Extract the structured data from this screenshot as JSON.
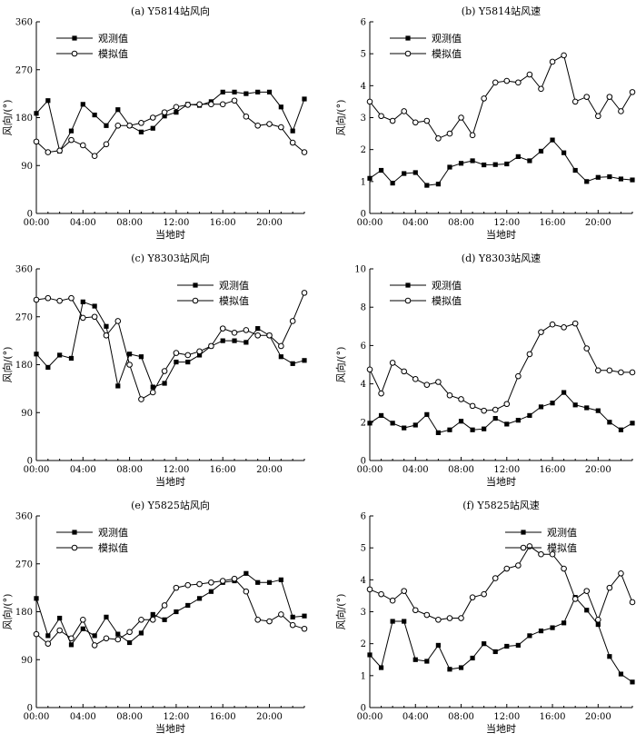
{
  "chart_data": [
    {
      "type": "line",
      "title": "(a) Y5814站风向",
      "xlabel": "当地时",
      "ylabel": "风向/(°)",
      "ylim": [
        0,
        360
      ],
      "yticks": [
        "0",
        "90",
        "180",
        "270",
        "360"
      ],
      "xticks": [
        "00:00",
        "04:00",
        "08:00",
        "12:00",
        "16:00",
        "20:00"
      ],
      "x": [
        0,
        1,
        2,
        3,
        4,
        5,
        6,
        7,
        8,
        9,
        10,
        11,
        12,
        13,
        14,
        15,
        16,
        17,
        18,
        19,
        20,
        21,
        22,
        23
      ],
      "legend": "top-left",
      "series": [
        {
          "name": "观测值",
          "marker": "filled-square",
          "values": [
            188,
            212,
            117,
            155,
            205,
            185,
            165,
            195,
            165,
            153,
            160,
            183,
            190,
            205,
            203,
            210,
            228,
            228,
            225,
            228,
            228,
            200,
            155,
            215
          ]
        },
        {
          "name": "模拟值",
          "marker": "open-circle",
          "values": [
            135,
            115,
            118,
            138,
            128,
            108,
            130,
            165,
            165,
            170,
            180,
            190,
            200,
            204,
            205,
            205,
            205,
            212,
            182,
            165,
            168,
            162,
            133,
            115
          ]
        }
      ]
    },
    {
      "type": "line",
      "title": "(b) Y5814站风速",
      "xlabel": "当地时",
      "ylabel": "风向/(°)",
      "ylim": [
        0,
        6
      ],
      "yticks": [
        "0",
        "1",
        "2",
        "3",
        "4",
        "5",
        "6"
      ],
      "xticks": [
        "00:00",
        "04:00",
        "08:00",
        "12:00",
        "16:00",
        "20:00"
      ],
      "x": [
        0,
        1,
        2,
        3,
        4,
        5,
        6,
        7,
        8,
        9,
        10,
        11,
        12,
        13,
        14,
        15,
        16,
        17,
        18,
        19,
        20,
        21,
        22,
        23
      ],
      "legend": "top-left",
      "series": [
        {
          "name": "观测值",
          "marker": "filled-square",
          "values": [
            1.1,
            1.35,
            0.95,
            1.25,
            1.28,
            0.88,
            0.92,
            1.45,
            1.57,
            1.65,
            1.52,
            1.53,
            1.55,
            1.78,
            1.65,
            1.95,
            2.3,
            1.9,
            1.35,
            1.0,
            1.13,
            1.15,
            1.08,
            1.05
          ]
        },
        {
          "name": "模拟值",
          "marker": "open-circle",
          "values": [
            3.5,
            3.05,
            2.9,
            3.2,
            2.85,
            2.9,
            2.35,
            2.5,
            3.0,
            2.45,
            3.6,
            4.1,
            4.15,
            4.1,
            4.35,
            3.9,
            4.75,
            4.95,
            3.5,
            3.65,
            3.05,
            3.65,
            3.2,
            3.8
          ]
        }
      ]
    },
    {
      "type": "line",
      "title": "(c) Y8303站风向",
      "xlabel": "当地时",
      "ylabel": "风向/(°)",
      "ylim": [
        0,
        360
      ],
      "yticks": [
        "0",
        "90",
        "180",
        "270",
        "360"
      ],
      "xticks": [
        "00:00",
        "04:00",
        "08:00",
        "12:00",
        "16:00",
        "20:00"
      ],
      "x": [
        0,
        1,
        2,
        3,
        4,
        5,
        6,
        7,
        8,
        9,
        10,
        11,
        12,
        13,
        14,
        15,
        16,
        17,
        18,
        19,
        20,
        21,
        22,
        23
      ],
      "legend": "top-right",
      "series": [
        {
          "name": "观测值",
          "marker": "filled-square",
          "values": [
            200,
            175,
            198,
            192,
            298,
            290,
            252,
            140,
            200,
            195,
            138,
            145,
            185,
            185,
            198,
            215,
            225,
            225,
            222,
            248,
            235,
            195,
            182,
            188
          ]
        },
        {
          "name": "模拟值",
          "marker": "open-circle",
          "values": [
            302,
            305,
            300,
            305,
            268,
            270,
            235,
            262,
            180,
            115,
            128,
            168,
            202,
            198,
            205,
            215,
            248,
            240,
            245,
            235,
            235,
            215,
            262,
            315
          ]
        }
      ]
    },
    {
      "type": "line",
      "title": "(d) Y8303站风速",
      "xlabel": "当地时",
      "ylabel": "风向/(°)",
      "ylim": [
        0,
        10
      ],
      "yticks": [
        "0",
        "2",
        "4",
        "6",
        "8",
        "10"
      ],
      "xticks": [
        "00:00",
        "04:00",
        "08:00",
        "12:00",
        "16:00",
        "20:00"
      ],
      "x": [
        0,
        1,
        2,
        3,
        4,
        5,
        6,
        7,
        8,
        9,
        10,
        11,
        12,
        13,
        14,
        15,
        16,
        17,
        18,
        19,
        20,
        21,
        22,
        23
      ],
      "legend": "top-left",
      "series": [
        {
          "name": "观测值",
          "marker": "filled-square",
          "values": [
            1.95,
            2.35,
            1.95,
            1.7,
            1.85,
            2.4,
            1.45,
            1.6,
            2.05,
            1.6,
            1.65,
            2.2,
            1.9,
            2.1,
            2.35,
            2.8,
            3.0,
            3.55,
            2.9,
            2.75,
            2.6,
            2.0,
            1.6,
            1.95
          ]
        },
        {
          "name": "模拟值",
          "marker": "open-circle",
          "values": [
            4.75,
            3.5,
            5.1,
            4.65,
            4.25,
            3.95,
            4.1,
            3.4,
            3.2,
            2.85,
            2.6,
            2.65,
            2.95,
            4.4,
            5.55,
            6.7,
            7.1,
            6.95,
            7.15,
            5.85,
            4.7,
            4.7,
            4.6,
            4.6
          ]
        }
      ]
    },
    {
      "type": "line",
      "title": "(e) Y5825站风向",
      "xlabel": "当地时",
      "ylabel": "风向/(°)",
      "ylim": [
        0,
        360
      ],
      "yticks": [
        "0",
        "90",
        "180",
        "270",
        "360"
      ],
      "xticks": [
        "00:00",
        "04:00",
        "08:00",
        "12:00",
        "16:00",
        "20:00"
      ],
      "x": [
        0,
        1,
        2,
        3,
        4,
        5,
        6,
        7,
        8,
        9,
        10,
        11,
        12,
        13,
        14,
        15,
        16,
        17,
        18,
        19,
        20,
        21,
        22,
        23
      ],
      "legend": "top-left",
      "series": [
        {
          "name": "观测值",
          "marker": "filled-square",
          "values": [
            205,
            135,
            168,
            118,
            148,
            135,
            170,
            138,
            122,
            140,
            175,
            165,
            180,
            192,
            205,
            218,
            235,
            238,
            252,
            235,
            235,
            240,
            170,
            172
          ]
        },
        {
          "name": "模拟值",
          "marker": "open-circle",
          "values": [
            138,
            120,
            145,
            130,
            165,
            117,
            130,
            128,
            142,
            165,
            165,
            192,
            225,
            230,
            232,
            235,
            238,
            242,
            218,
            165,
            162,
            175,
            155,
            148
          ]
        }
      ]
    },
    {
      "type": "line",
      "title": "(f) Y5825站风速",
      "xlabel": "当地时",
      "ylabel": "风向/(°)",
      "ylim": [
        0,
        6
      ],
      "yticks": [
        "0",
        "1",
        "2",
        "3",
        "4",
        "5",
        "6"
      ],
      "xticks": [
        "00:00",
        "04:00",
        "08:00",
        "12:00",
        "16:00",
        "20:00"
      ],
      "x": [
        0,
        1,
        2,
        3,
        4,
        5,
        6,
        7,
        8,
        9,
        10,
        11,
        12,
        13,
        14,
        15,
        16,
        17,
        18,
        19,
        20,
        21,
        22,
        23
      ],
      "legend": "top-right",
      "series": [
        {
          "name": "观测值",
          "marker": "filled-square",
          "values": [
            1.65,
            1.25,
            2.7,
            2.7,
            1.5,
            1.45,
            1.95,
            1.2,
            1.25,
            1.55,
            2.0,
            1.75,
            1.92,
            1.95,
            2.25,
            2.4,
            2.5,
            2.65,
            3.45,
            3.05,
            2.6,
            1.6,
            1.05,
            0.8
          ]
        },
        {
          "name": "模拟值",
          "marker": "open-circle",
          "values": [
            3.7,
            3.55,
            3.35,
            3.65,
            3.05,
            2.9,
            2.75,
            2.8,
            2.8,
            3.45,
            3.55,
            4.05,
            4.35,
            4.45,
            5.05,
            4.8,
            4.8,
            4.35,
            3.4,
            3.65,
            2.75,
            3.75,
            4.2,
            3.3
          ]
        }
      ]
    }
  ]
}
